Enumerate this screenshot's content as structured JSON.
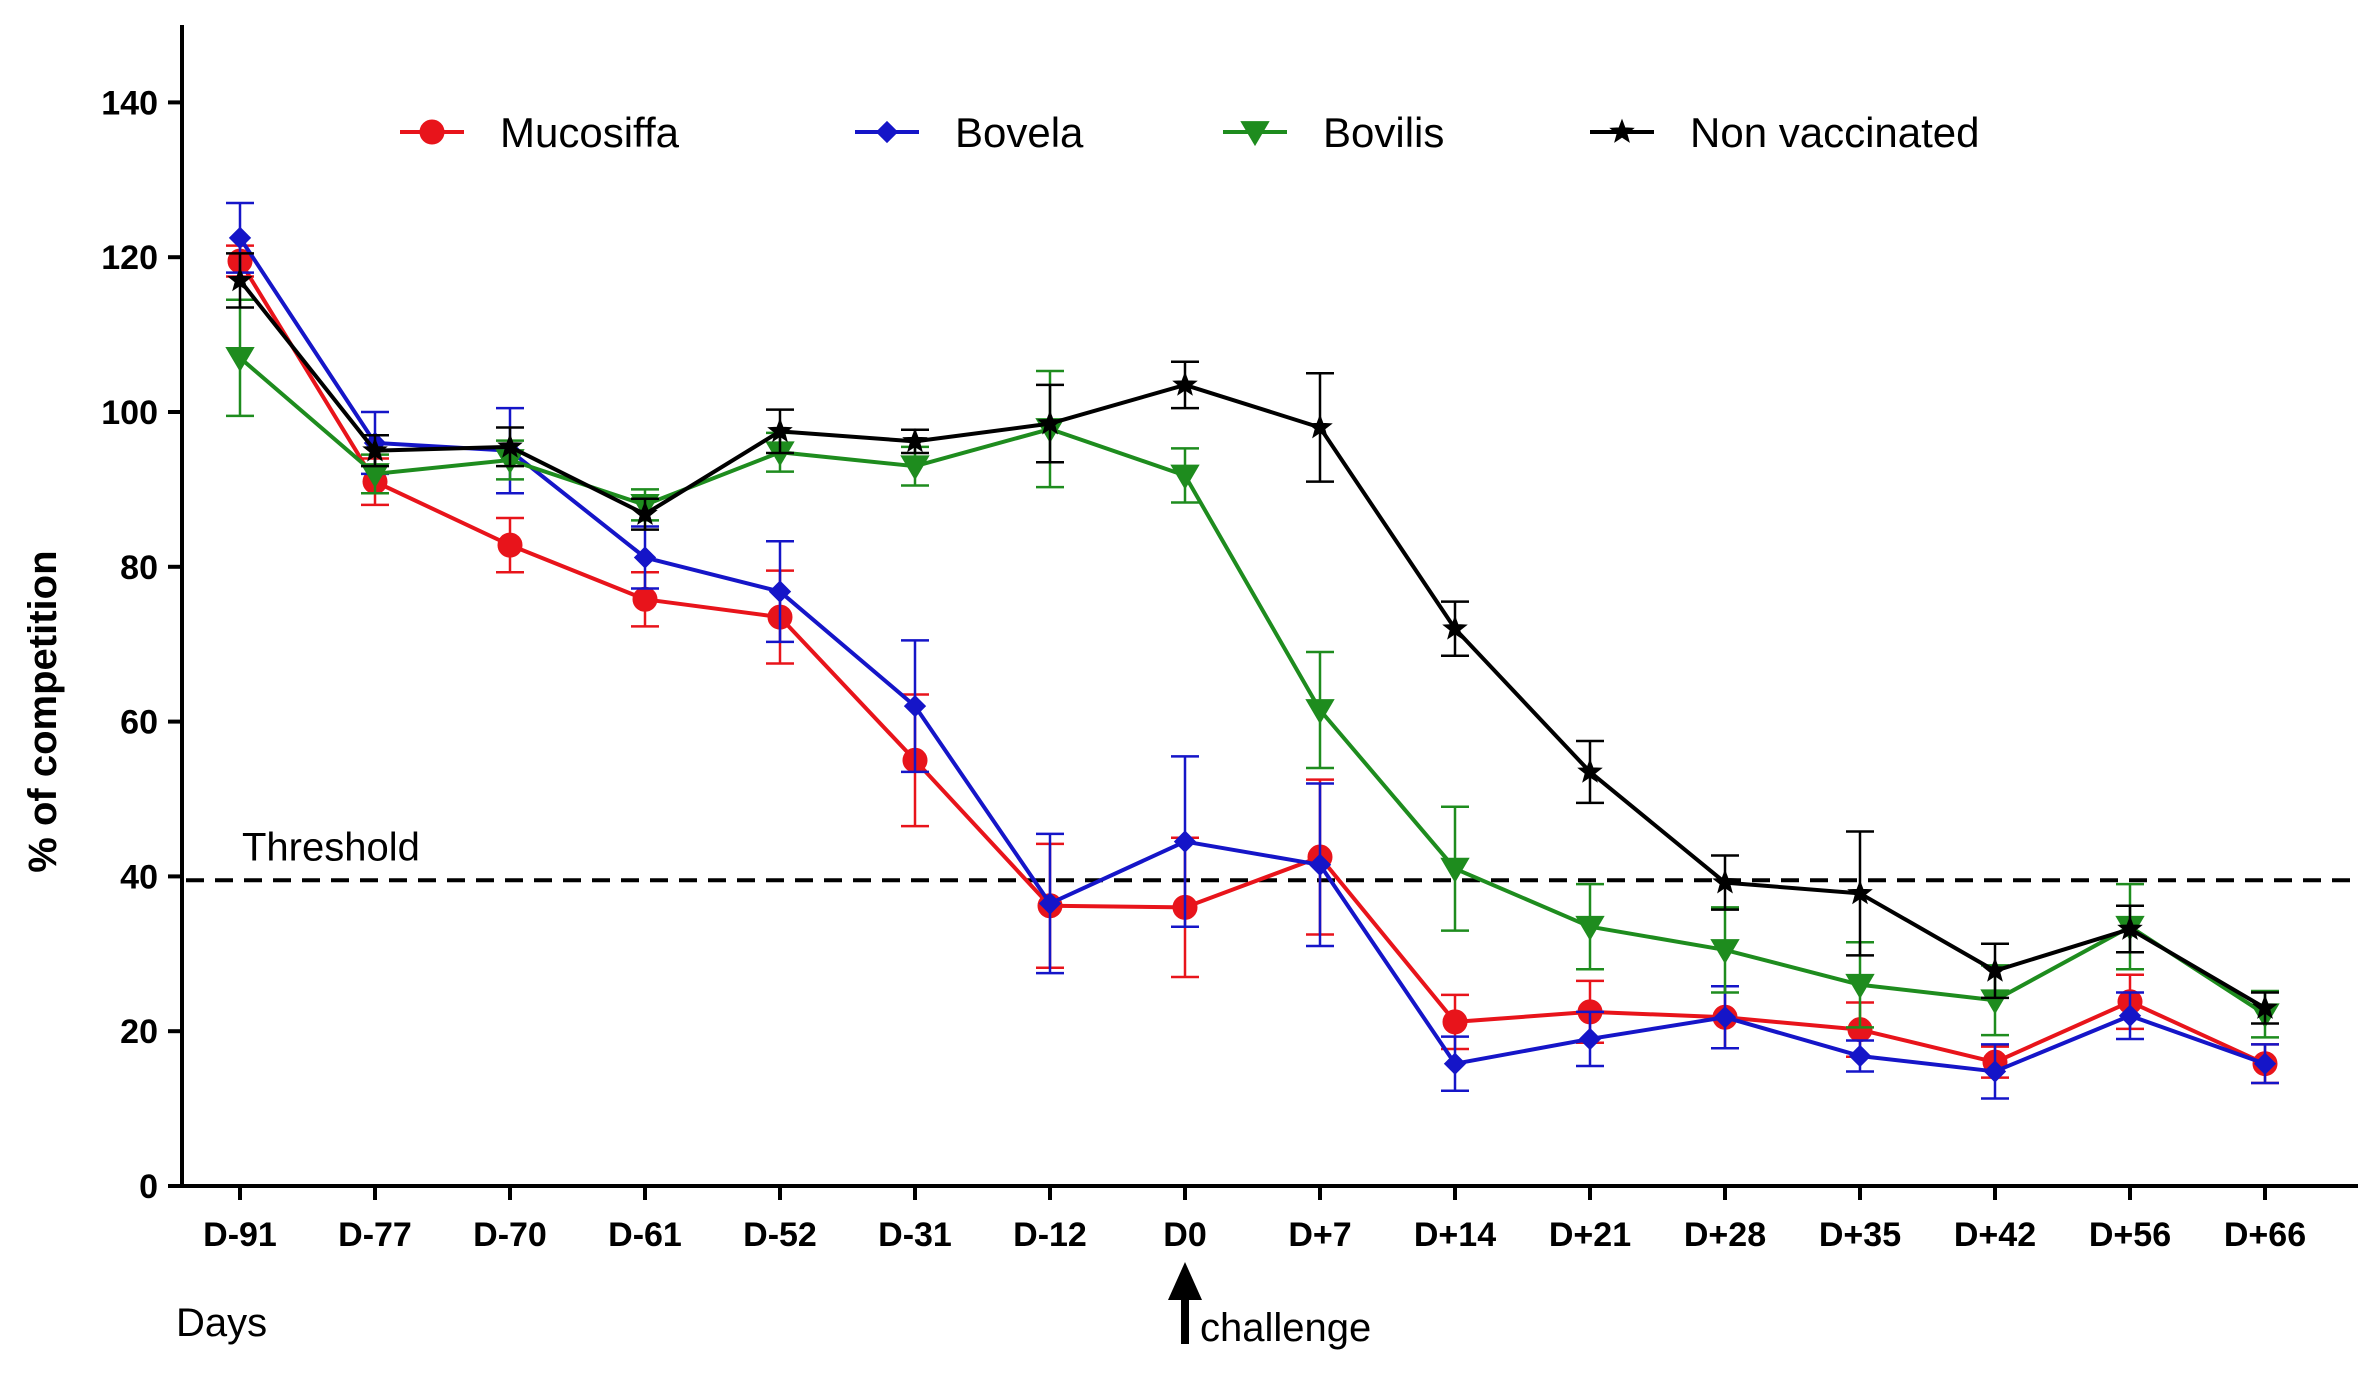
{
  "chart_data": {
    "type": "line",
    "title": "",
    "xlabel": "Days",
    "ylabel": "% of competition",
    "ylim": [
      0,
      150
    ],
    "yticks": [
      0,
      20,
      40,
      60,
      80,
      100,
      120,
      140
    ],
    "categories": [
      "D-91",
      "D-77",
      "D-70",
      "D-61",
      "D-52",
      "D-31",
      "D-12",
      "D0",
      "D+7",
      "D+14",
      "D+21",
      "D+28",
      "D+35",
      "D+42",
      "D+56",
      "D+66"
    ],
    "threshold": {
      "label": "Threshold",
      "value": 39.5
    },
    "annotation": {
      "label": "challenge",
      "category": "D0"
    },
    "legend_position": "top",
    "series": [
      {
        "name": "Mucosiffa",
        "color": "#e8141b",
        "marker": "circle",
        "values": [
          119.5,
          91,
          82.8,
          75.8,
          73.5,
          55,
          36.2,
          36,
          42.5,
          21.2,
          22.5,
          21.8,
          20.2,
          16,
          23.8,
          15.8
        ],
        "errors": [
          2,
          3,
          3.5,
          3.5,
          6,
          8.5,
          8,
          9,
          10,
          3.5,
          4,
          4,
          3.5,
          2,
          3.5,
          2.5
        ]
      },
      {
        "name": "Bovela",
        "color": "#1515c8",
        "marker": "diamond",
        "values": [
          122.5,
          96,
          95,
          81.2,
          76.8,
          62,
          36.5,
          44.5,
          41.5,
          15.8,
          19,
          21.8,
          16.8,
          14.8,
          22,
          15.8
        ],
        "errors": [
          4.5,
          4,
          5.5,
          4,
          6.5,
          8.5,
          9,
          11,
          10.5,
          3.5,
          3.5,
          4,
          2,
          3.5,
          3,
          2.5
        ]
      },
      {
        "name": "Bovilis",
        "color": "#1e8c1e",
        "marker": "triangle-down",
        "values": [
          107,
          92,
          93.8,
          88,
          94.8,
          93,
          97.8,
          91.8,
          61.5,
          41,
          33.5,
          30.5,
          26,
          24,
          33.5,
          22.2
        ],
        "errors": [
          7.5,
          2.5,
          2.5,
          2,
          2.5,
          2.5,
          7.5,
          3.5,
          7.5,
          8,
          5.5,
          5.5,
          5.5,
          4.5,
          5.5,
          3
        ]
      },
      {
        "name": "Non vaccinated",
        "color": "#000000",
        "marker": "star",
        "values": [
          117,
          95,
          95.5,
          86.8,
          97.5,
          96.2,
          98.5,
          103.5,
          98,
          72,
          53.5,
          39.2,
          37.8,
          27.8,
          33.2,
          23
        ],
        "errors": [
          3.5,
          2,
          2.5,
          2,
          2.8,
          1.5,
          5,
          3,
          7,
          3.5,
          4,
          3.5,
          8,
          3.5,
          3,
          2
        ]
      }
    ]
  }
}
